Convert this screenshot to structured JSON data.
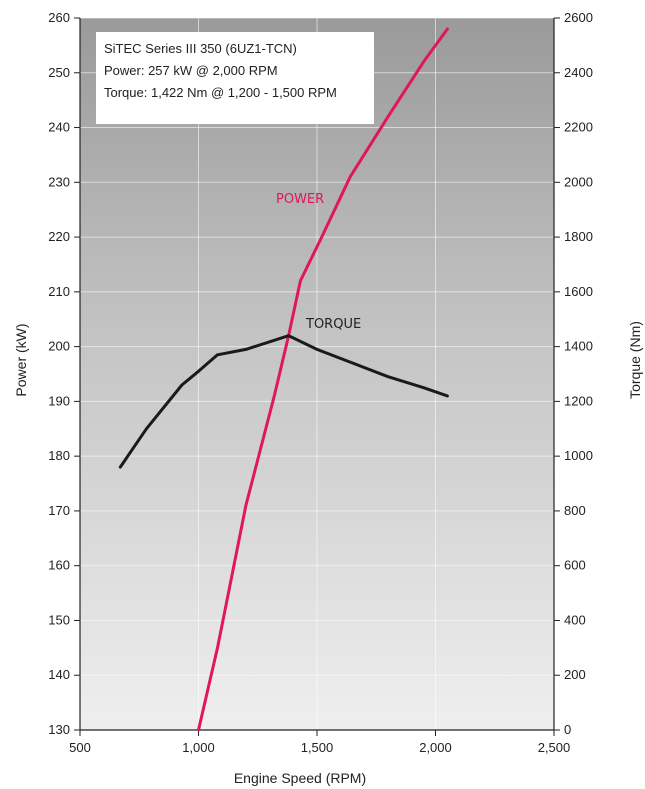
{
  "chart_data": {
    "type": "line",
    "xlabel": "Engine Speed (RPM)",
    "ylabel_left": "Power (kW)",
    "ylabel_right": "Torque (Nm)",
    "xlim": [
      500,
      2500
    ],
    "ylim_left": [
      130,
      260
    ],
    "ylim_right": [
      0,
      2600
    ],
    "x_ticks": [
      "500",
      "1,000",
      "1,500",
      "2,000",
      "2,500"
    ],
    "y_ticks_left": [
      "130",
      "140",
      "150",
      "160",
      "170",
      "180",
      "190",
      "200",
      "210",
      "220",
      "230",
      "240",
      "250",
      "260"
    ],
    "y_ticks_right": [
      "0",
      "200",
      "400",
      "600",
      "800",
      "1000",
      "1200",
      "1400",
      "1600",
      "1800",
      "2000",
      "2200",
      "2400",
      "2600"
    ],
    "info_box": [
      "SiTEC Series III 350 (6UZ1-TCN)",
      "Power: 257 kW @ 2,000 RPM",
      "Torque: 1,422 Nm @ 1,200 - 1,500 RPM"
    ],
    "series": [
      {
        "name": "POWER",
        "axis": "left",
        "color": "#e0175a",
        "x": [
          1000,
          1080,
          1200,
          1320,
          1380,
          1430,
          1520,
          1640,
          1800,
          1950,
          2050
        ],
        "values": [
          130,
          145,
          171,
          191,
          202,
          212,
          220,
          231,
          242,
          252,
          258
        ]
      },
      {
        "name": "TORQUE",
        "axis": "right",
        "color": "#1a1a1a",
        "x": [
          670,
          780,
          930,
          1000,
          1080,
          1200,
          1380,
          1500,
          1650,
          1800,
          1950,
          2050
        ],
        "values": [
          960,
          1100,
          1260,
          1310,
          1370,
          1390,
          1440,
          1390,
          1340,
          1290,
          1250,
          1220
        ]
      }
    ],
    "grid": true,
    "legend": "none"
  }
}
